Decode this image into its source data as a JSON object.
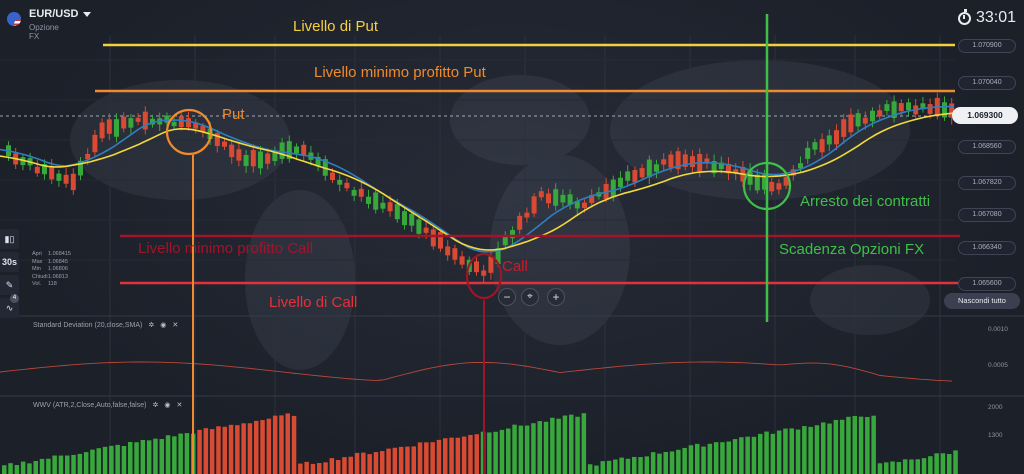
{
  "header": {
    "pair": "EUR/USD",
    "subtitle": "Opzione FX",
    "timer": "33:01"
  },
  "toolbar": {
    "timeframe": "30s",
    "badge": "4"
  },
  "ohlc": {
    "rows": [
      {
        "k": "Apri",
        "v": "1.068415"
      },
      {
        "k": "Max",
        "v": "1.06845"
      },
      {
        "k": "Min",
        "v": "1.06806"
      },
      {
        "k": "Chiudi",
        "v": "1.06813"
      },
      {
        "k": "Vol.",
        "v": "118"
      }
    ]
  },
  "indicators": {
    "std": "Standard Deviation (20,close,SMA)",
    "wwv": "WWV (ATR,2,Close,Auto,false,false)"
  },
  "price_axis": {
    "labels": [
      "1.070900",
      "1.070040",
      "1.068560",
      "1.067820",
      "1.067080",
      "1.066340",
      "1.065600"
    ],
    "current": "1.069300"
  },
  "std_axis": [
    "0.0010",
    "0.0005"
  ],
  "vol_axis": [
    "2000",
    "1300"
  ],
  "buttons": {
    "hide_all": "Nascondi tutto",
    "zoom_out": "−",
    "zoom_reset": "⌖",
    "zoom_in": "+"
  },
  "annotations": {
    "put_level": "Livello di Put",
    "put_min": "Livello minimo profitto Put",
    "put": "Put",
    "call_min": "Livello minimo profitto Call",
    "call": "Call",
    "call_level": "Livello di Call",
    "stop": "Arresto dei contratti",
    "expiry": "Scadenza Opzioni FX"
  },
  "colors": {
    "put_level": "#f4d03f",
    "put_min": "#f08a2c",
    "put": "#f08a2c",
    "call_min": "#a3132a",
    "call": "#c41e2e",
    "call_level": "#e4323b",
    "stop": "#3fbf4a",
    "expiry": "#3fbf4a",
    "bull": "#38a83c",
    "bear": "#d84a32",
    "ma_yellow": "#f2d93a",
    "ma_blue": "#2e7fc2"
  }
}
